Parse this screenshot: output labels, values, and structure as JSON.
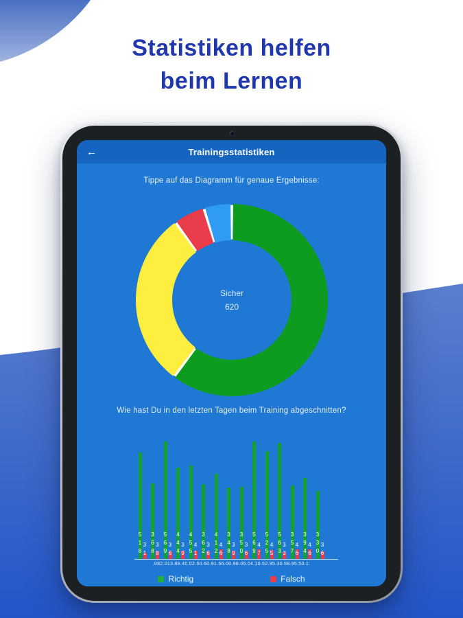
{
  "page": {
    "title": "Statistiken helfen\nbeim Lernen"
  },
  "tablet": {
    "header": {
      "back_icon": "←",
      "title": "Trainingsstatistiken"
    },
    "subtitle": "Tippe auf das Diagramm für genaue Ergebnisse:",
    "question": "Wie hast Du in den letzten Tagen beim Training abgeschnitten?"
  },
  "colors": {
    "page_title": "#2138ad",
    "app_header_bg": "#1565c0",
    "screen_bg": "#1f78d4",
    "donut_green": "#0d9c20",
    "donut_yellow": "#fdee3f",
    "donut_red": "#ea3d4b",
    "donut_blue": "#2f9bf2",
    "bar_green": "#14a22b",
    "bar_red": "#ef3b49",
    "text_on_blue": "#eaf2fc"
  },
  "chart_data": [
    {
      "type": "pie",
      "style": "donut",
      "center_label": {
        "line1": "Sicher",
        "line2": "620"
      },
      "segments": [
        {
          "name": "green-segment",
          "color": "#0d9c20",
          "start_deg": 0,
          "end_deg": 217,
          "share_pct": 60.3
        },
        {
          "name": "yellow-segment",
          "color": "#fdee3f",
          "start_deg": 217,
          "end_deg": 324,
          "share_pct": 29.7
        },
        {
          "name": "red-segment",
          "color": "#ea3d4b",
          "start_deg": 324,
          "end_deg": 343,
          "share_pct": 5.3
        },
        {
          "name": "blue-segment",
          "color": "#2f9bf2",
          "start_deg": 343,
          "end_deg": 360,
          "share_pct": 4.7
        }
      ]
    },
    {
      "type": "bar",
      "series": [
        {
          "name": "Richtig",
          "color": "#14a22b",
          "values": [
            518,
            368,
            569,
            444,
            455,
            362,
            412,
            348,
            350,
            569,
            525,
            563,
            357,
            394,
            330
          ]
        },
        {
          "name": "Falsch",
          "color": "#ef3b49",
          "values": [
            31,
            38,
            36,
            39,
            41,
            36,
            46,
            39,
            36,
            47,
            45,
            33,
            46,
            46,
            36
          ]
        }
      ],
      "x_axis_text": ".082.013.86.40.02.50.60.91.56.00.98.05.04.10.52.95.30.58.95.50.1:",
      "legend": [
        {
          "label": "Richtig",
          "color": "#22b23a"
        },
        {
          "label": "Falsch",
          "color": "#ef3b49"
        }
      ],
      "legend_position": "bottom",
      "value_labels": "vertical-above-bars"
    }
  ]
}
